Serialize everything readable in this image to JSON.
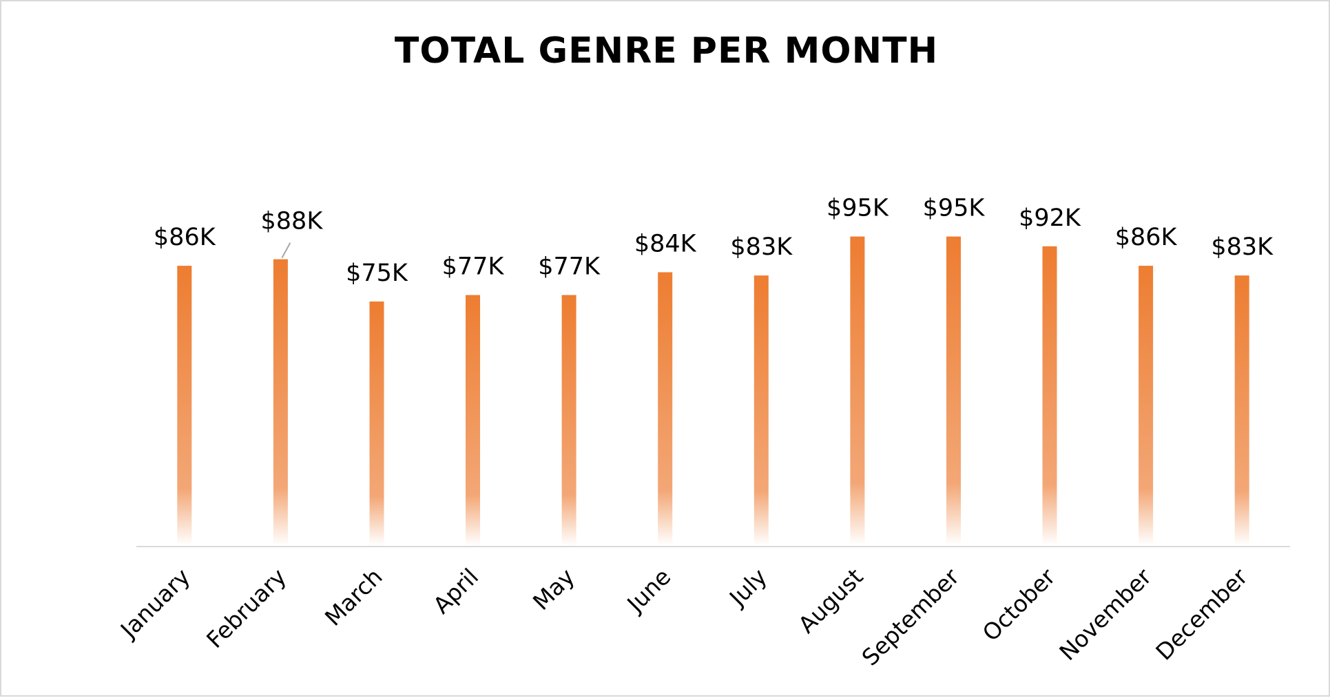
{
  "chart_data": {
    "type": "bar",
    "title": "TOTAL GENRE PER MONTH",
    "xlabel": "",
    "ylabel": "",
    "categories": [
      "January",
      "February",
      "March",
      "April",
      "May",
      "June",
      "July",
      "August",
      "September",
      "October",
      "November",
      "December"
    ],
    "values": [
      86,
      88,
      75,
      77,
      77,
      84,
      83,
      95,
      95,
      92,
      86,
      83
    ],
    "value_labels": [
      "$86K",
      "$88K",
      "$75K",
      "$77K",
      "$77K",
      "$84K",
      "$83K",
      "$95K",
      "$95K",
      "$92K",
      "$86K",
      "$83K"
    ],
    "ylim": [
      0,
      95
    ],
    "grid": false,
    "legend": "none",
    "bar_color": "#ed7d31",
    "bar_fade_color": "#ffffff"
  }
}
